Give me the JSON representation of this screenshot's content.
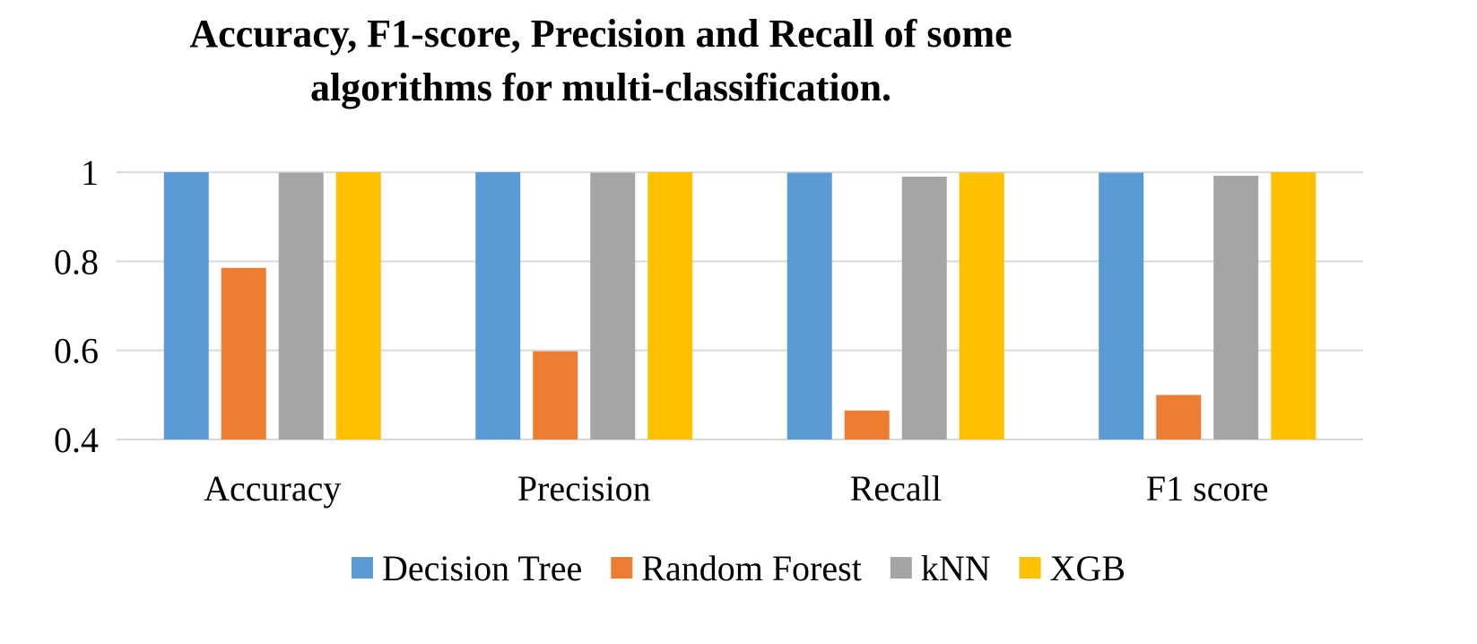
{
  "chart_data": {
    "type": "bar",
    "title": "Accuracy, F1-score, Precision and Recall of some algorithms for multi-classification.",
    "xlabel": "",
    "ylabel": "",
    "categories": [
      "Accuracy",
      "Precision",
      "Recall",
      "F1 score"
    ],
    "series": [
      {
        "name": "Decision Tree",
        "color": "#5B9BD5",
        "values": [
          1.0,
          1.0,
          0.999,
          0.999
        ]
      },
      {
        "name": "Random Forest",
        "color": "#ED7D31",
        "values": [
          0.785,
          0.598,
          0.465,
          0.5
        ]
      },
      {
        "name": "kNN",
        "color": "#A5A5A5",
        "values": [
          0.999,
          0.999,
          0.99,
          0.992
        ]
      },
      {
        "name": "XGB",
        "color": "#FFC000",
        "values": [
          1.0,
          1.0,
          0.999,
          1.0
        ]
      }
    ],
    "ylim": [
      0.4,
      1.0
    ],
    "yticks": [
      "0.4",
      "0.6",
      "0.8",
      "1"
    ],
    "ytick_values": [
      0.4,
      0.6,
      0.8,
      1.0
    ],
    "grid": true,
    "legend_position": "bottom"
  }
}
